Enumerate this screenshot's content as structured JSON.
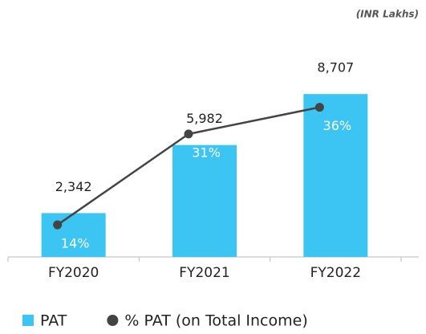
{
  "chart_data": {
    "type": "bar",
    "subtitle": "(INR Lakhs)",
    "categories": [
      "FY2020",
      "FY2021",
      "FY2022"
    ],
    "ylim": [
      0,
      10000
    ],
    "y2lim": [
      8,
      43
    ],
    "series": [
      {
        "name": "PAT",
        "type": "bar",
        "color": "#3cc5f2",
        "values": [
          2342,
          5982,
          8707
        ],
        "value_labels": [
          "2,342",
          "5,982",
          "8,707"
        ]
      },
      {
        "name": "% PAT (on Total Income)",
        "type": "line",
        "axis": "y2",
        "color": "#444444",
        "values": [
          14,
          31,
          36
        ],
        "value_labels": [
          "14%",
          "31%",
          "36%"
        ]
      }
    ],
    "legend": "bottom"
  }
}
